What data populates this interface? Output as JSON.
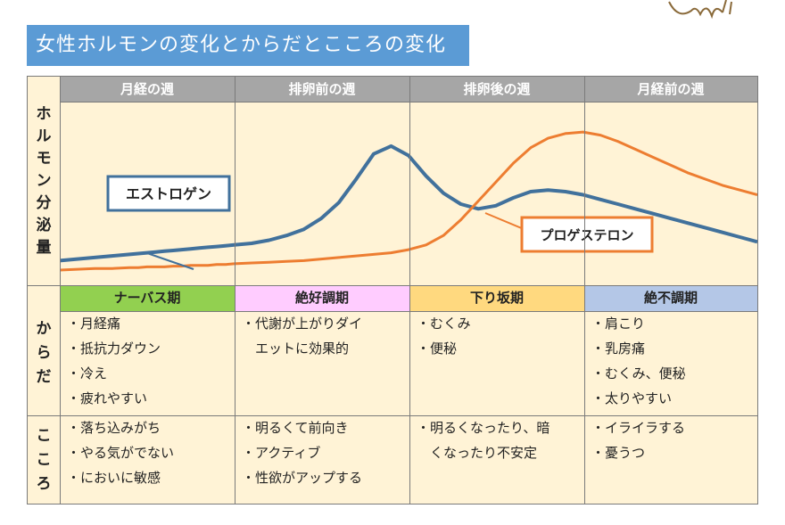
{
  "page_title": "女性ホルモンの変化とからだとこころの変化",
  "row_labels": {
    "hormone": [
      "ホ",
      "ル",
      "モ",
      "ン",
      "分",
      "泌",
      "量"
    ],
    "body": [
      "か",
      "ら",
      "だ"
    ],
    "mind": [
      "こ",
      "こ",
      "ろ"
    ]
  },
  "weeks": [
    "月経の週",
    "排卵前の週",
    "排卵後の週",
    "月経前の週"
  ],
  "phases": [
    {
      "label": "ナーバス期",
      "color": "#92d050"
    },
    {
      "label": "絶好調期",
      "color": "#ffccff"
    },
    {
      "label": "下り坂期",
      "color": "#ffd97f"
    },
    {
      "label": "絶不調期",
      "color": "#b4c7e7"
    }
  ],
  "body_items": [
    [
      "・月経痛",
      "・抵抗力ダウン",
      "・冷え",
      "・疲れやすい"
    ],
    [
      "・代謝が上がりダイ",
      "　エットに効果的"
    ],
    [
      "・むくみ",
      "・便秘"
    ],
    [
      "・肩こり",
      "・乳房痛",
      "・むくみ、便秘",
      "・太りやすい"
    ]
  ],
  "mind_items": [
    [
      "・落ち込みがち",
      "・やる気がでない",
      "・においに敏感"
    ],
    [
      "・明るくて前向き",
      "・アクティブ",
      "・性欲がアップする"
    ],
    [
      "・明るくなったり、暗",
      "　くなったり不安定"
    ],
    [
      "・イライラする",
      "・憂うつ"
    ]
  ],
  "chart_data": {
    "type": "line",
    "title": "",
    "xlabel": "",
    "ylabel": "ホルモン分泌量",
    "x": [
      0,
      0.1,
      0.2,
      0.3,
      0.4,
      0.45,
      0.5,
      0.55,
      0.6,
      0.65,
      0.7,
      0.75,
      0.8,
      0.85,
      0.9,
      0.95,
      1.0,
      1.1,
      1.2,
      1.3,
      1.4,
      1.5,
      1.6,
      1.7,
      1.8,
      1.9,
      2.0,
      2.1,
      2.2,
      2.3,
      2.4,
      2.5,
      2.6,
      2.7,
      2.8,
      2.9,
      3.0,
      3.1,
      3.2,
      3.3,
      3.4,
      3.5,
      3.6,
      3.7,
      3.8,
      3.9,
      4.0
    ],
    "series": [
      {
        "name": "エストロゲン",
        "color": "#41719c",
        "values": [
          0.1,
          0.11,
          0.12,
          0.13,
          0.14,
          0.145,
          0.15,
          0.155,
          0.16,
          0.165,
          0.17,
          0.175,
          0.18,
          0.185,
          0.19,
          0.195,
          0.2,
          0.21,
          0.23,
          0.26,
          0.3,
          0.37,
          0.47,
          0.62,
          0.78,
          0.83,
          0.77,
          0.64,
          0.53,
          0.46,
          0.43,
          0.45,
          0.5,
          0.54,
          0.55,
          0.54,
          0.52,
          0.49,
          0.46,
          0.43,
          0.4,
          0.37,
          0.34,
          0.31,
          0.28,
          0.25,
          0.22
        ]
      },
      {
        "name": "プロゲステロン",
        "color": "#ed7d31",
        "values": [
          0.04,
          0.045,
          0.05,
          0.05,
          0.055,
          0.055,
          0.06,
          0.06,
          0.06,
          0.065,
          0.065,
          0.07,
          0.07,
          0.07,
          0.075,
          0.075,
          0.08,
          0.085,
          0.09,
          0.095,
          0.1,
          0.11,
          0.12,
          0.13,
          0.14,
          0.15,
          0.17,
          0.2,
          0.26,
          0.36,
          0.48,
          0.6,
          0.72,
          0.82,
          0.88,
          0.91,
          0.92,
          0.9,
          0.86,
          0.81,
          0.76,
          0.71,
          0.66,
          0.62,
          0.58,
          0.55,
          0.52
        ]
      }
    ],
    "ylim": [
      0,
      1
    ],
    "xlim": [
      0,
      4
    ],
    "grid": false
  }
}
